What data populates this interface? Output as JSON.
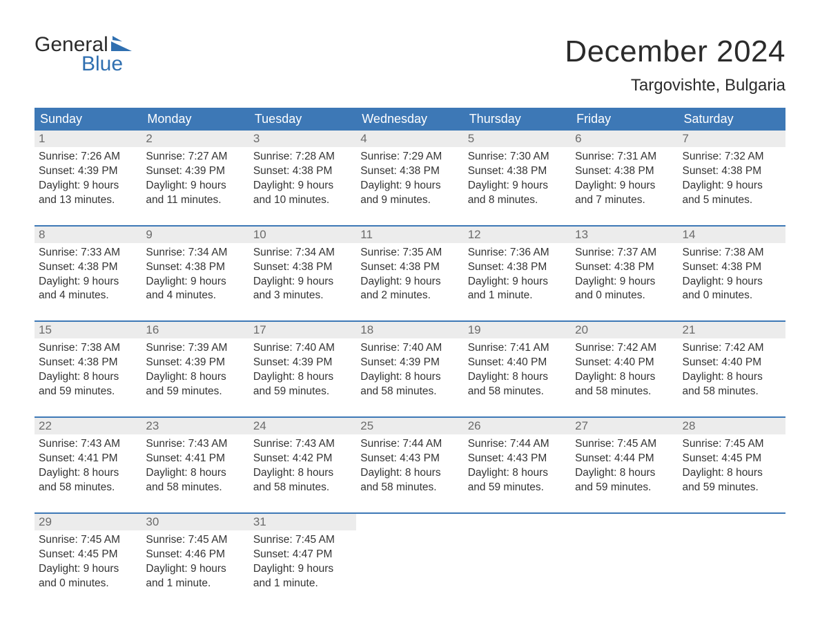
{
  "brand": {
    "word1": "General",
    "word2": "Blue",
    "flag_color": "#2f6fb0",
    "word1_color": "#2b2b2b",
    "word2_color": "#2f6fb0"
  },
  "title": "December 2024",
  "location": "Targovishte, Bulgaria",
  "colors": {
    "header_bg": "#3d78b6",
    "header_text": "#ffffff",
    "daynum_bg": "#ececec",
    "daynum_text": "#6b6b6b",
    "body_text": "#333333",
    "page_bg": "#ffffff",
    "rule": "#3d78b6"
  },
  "typography": {
    "month_title_pt": 44,
    "location_pt": 24,
    "dayheader_pt": 18,
    "daynum_pt": 17,
    "cell_pt": 15.5,
    "font_family": "Arial"
  },
  "day_headers": [
    "Sunday",
    "Monday",
    "Tuesday",
    "Wednesday",
    "Thursday",
    "Friday",
    "Saturday"
  ],
  "weeks": [
    [
      {
        "n": "1",
        "sr": "7:26 AM",
        "ss": "4:39 PM",
        "dl1": "Daylight: 9 hours",
        "dl2": "and 13 minutes."
      },
      {
        "n": "2",
        "sr": "7:27 AM",
        "ss": "4:39 PM",
        "dl1": "Daylight: 9 hours",
        "dl2": "and 11 minutes."
      },
      {
        "n": "3",
        "sr": "7:28 AM",
        "ss": "4:38 PM",
        "dl1": "Daylight: 9 hours",
        "dl2": "and 10 minutes."
      },
      {
        "n": "4",
        "sr": "7:29 AM",
        "ss": "4:38 PM",
        "dl1": "Daylight: 9 hours",
        "dl2": "and 9 minutes."
      },
      {
        "n": "5",
        "sr": "7:30 AM",
        "ss": "4:38 PM",
        "dl1": "Daylight: 9 hours",
        "dl2": "and 8 minutes."
      },
      {
        "n": "6",
        "sr": "7:31 AM",
        "ss": "4:38 PM",
        "dl1": "Daylight: 9 hours",
        "dl2": "and 7 minutes."
      },
      {
        "n": "7",
        "sr": "7:32 AM",
        "ss": "4:38 PM",
        "dl1": "Daylight: 9 hours",
        "dl2": "and 5 minutes."
      }
    ],
    [
      {
        "n": "8",
        "sr": "7:33 AM",
        "ss": "4:38 PM",
        "dl1": "Daylight: 9 hours",
        "dl2": "and 4 minutes."
      },
      {
        "n": "9",
        "sr": "7:34 AM",
        "ss": "4:38 PM",
        "dl1": "Daylight: 9 hours",
        "dl2": "and 4 minutes."
      },
      {
        "n": "10",
        "sr": "7:34 AM",
        "ss": "4:38 PM",
        "dl1": "Daylight: 9 hours",
        "dl2": "and 3 minutes."
      },
      {
        "n": "11",
        "sr": "7:35 AM",
        "ss": "4:38 PM",
        "dl1": "Daylight: 9 hours",
        "dl2": "and 2 minutes."
      },
      {
        "n": "12",
        "sr": "7:36 AM",
        "ss": "4:38 PM",
        "dl1": "Daylight: 9 hours",
        "dl2": "and 1 minute."
      },
      {
        "n": "13",
        "sr": "7:37 AM",
        "ss": "4:38 PM",
        "dl1": "Daylight: 9 hours",
        "dl2": "and 0 minutes."
      },
      {
        "n": "14",
        "sr": "7:38 AM",
        "ss": "4:38 PM",
        "dl1": "Daylight: 9 hours",
        "dl2": "and 0 minutes."
      }
    ],
    [
      {
        "n": "15",
        "sr": "7:38 AM",
        "ss": "4:38 PM",
        "dl1": "Daylight: 8 hours",
        "dl2": "and 59 minutes."
      },
      {
        "n": "16",
        "sr": "7:39 AM",
        "ss": "4:39 PM",
        "dl1": "Daylight: 8 hours",
        "dl2": "and 59 minutes."
      },
      {
        "n": "17",
        "sr": "7:40 AM",
        "ss": "4:39 PM",
        "dl1": "Daylight: 8 hours",
        "dl2": "and 59 minutes."
      },
      {
        "n": "18",
        "sr": "7:40 AM",
        "ss": "4:39 PM",
        "dl1": "Daylight: 8 hours",
        "dl2": "and 58 minutes."
      },
      {
        "n": "19",
        "sr": "7:41 AM",
        "ss": "4:40 PM",
        "dl1": "Daylight: 8 hours",
        "dl2": "and 58 minutes."
      },
      {
        "n": "20",
        "sr": "7:42 AM",
        "ss": "4:40 PM",
        "dl1": "Daylight: 8 hours",
        "dl2": "and 58 minutes."
      },
      {
        "n": "21",
        "sr": "7:42 AM",
        "ss": "4:40 PM",
        "dl1": "Daylight: 8 hours",
        "dl2": "and 58 minutes."
      }
    ],
    [
      {
        "n": "22",
        "sr": "7:43 AM",
        "ss": "4:41 PM",
        "dl1": "Daylight: 8 hours",
        "dl2": "and 58 minutes."
      },
      {
        "n": "23",
        "sr": "7:43 AM",
        "ss": "4:41 PM",
        "dl1": "Daylight: 8 hours",
        "dl2": "and 58 minutes."
      },
      {
        "n": "24",
        "sr": "7:43 AM",
        "ss": "4:42 PM",
        "dl1": "Daylight: 8 hours",
        "dl2": "and 58 minutes."
      },
      {
        "n": "25",
        "sr": "7:44 AM",
        "ss": "4:43 PM",
        "dl1": "Daylight: 8 hours",
        "dl2": "and 58 minutes."
      },
      {
        "n": "26",
        "sr": "7:44 AM",
        "ss": "4:43 PM",
        "dl1": "Daylight: 8 hours",
        "dl2": "and 59 minutes."
      },
      {
        "n": "27",
        "sr": "7:45 AM",
        "ss": "4:44 PM",
        "dl1": "Daylight: 8 hours",
        "dl2": "and 59 minutes."
      },
      {
        "n": "28",
        "sr": "7:45 AM",
        "ss": "4:45 PM",
        "dl1": "Daylight: 8 hours",
        "dl2": "and 59 minutes."
      }
    ],
    [
      {
        "n": "29",
        "sr": "7:45 AM",
        "ss": "4:45 PM",
        "dl1": "Daylight: 9 hours",
        "dl2": "and 0 minutes."
      },
      {
        "n": "30",
        "sr": "7:45 AM",
        "ss": "4:46 PM",
        "dl1": "Daylight: 9 hours",
        "dl2": "and 1 minute."
      },
      {
        "n": "31",
        "sr": "7:45 AM",
        "ss": "4:47 PM",
        "dl1": "Daylight: 9 hours",
        "dl2": "and 1 minute."
      },
      null,
      null,
      null,
      null
    ]
  ],
  "labels": {
    "sunrise_prefix": "Sunrise: ",
    "sunset_prefix": "Sunset: "
  }
}
